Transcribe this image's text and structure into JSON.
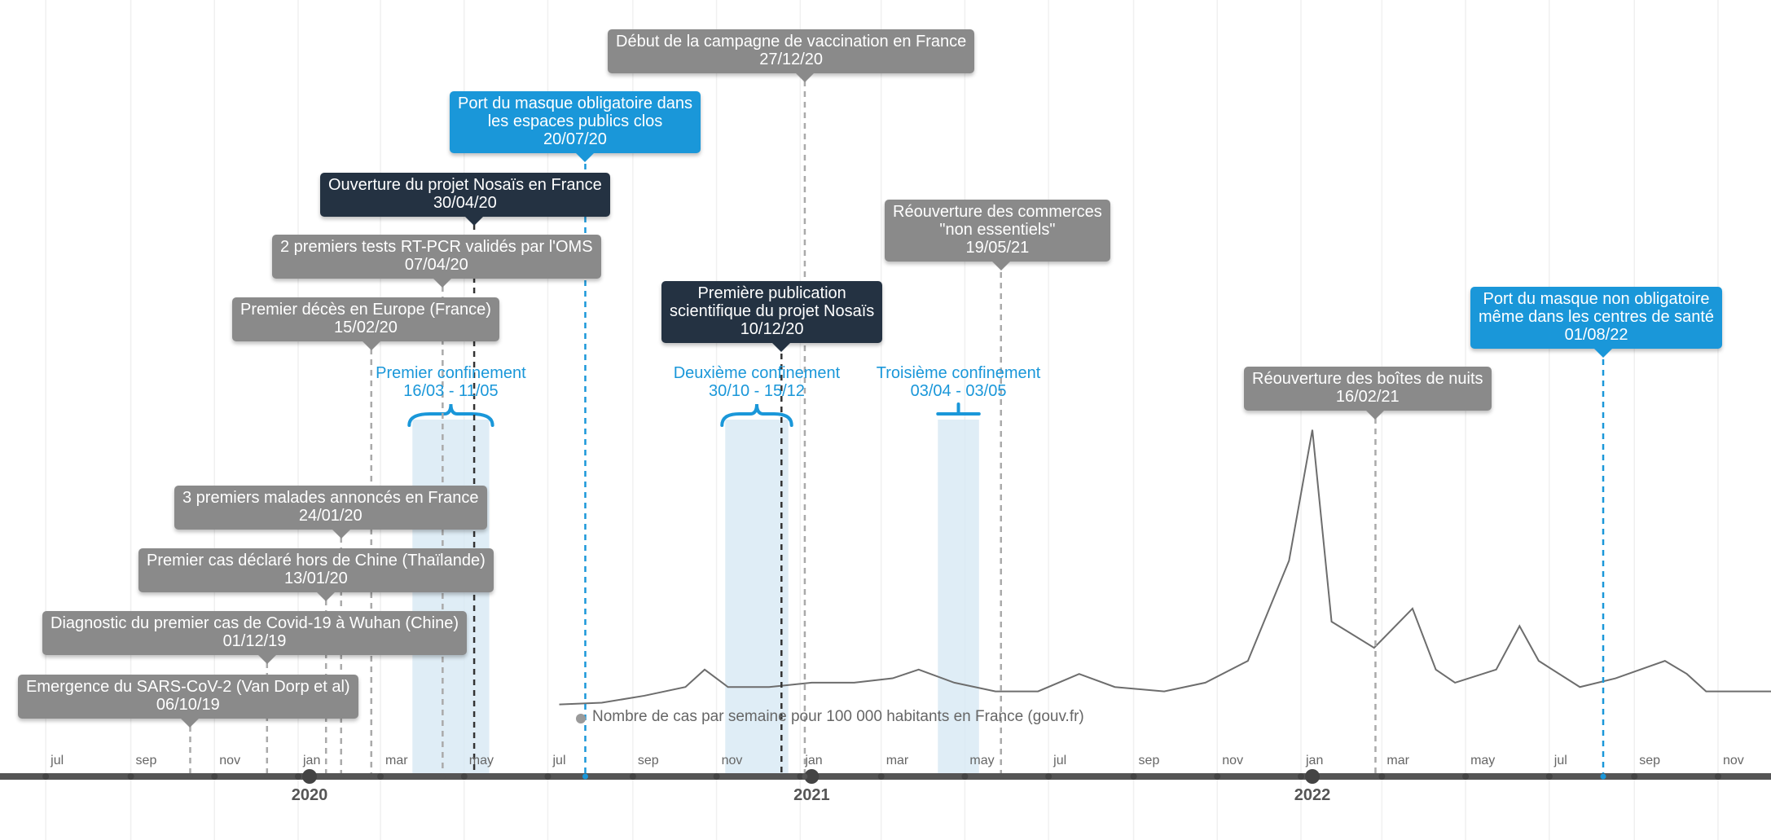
{
  "colors": {
    "gray_box": "#8a8a8a",
    "dark_box": "#243242",
    "blue_box": "#1a97d9",
    "shade": "#d7e8f4",
    "axis": "#555555"
  },
  "axis": {
    "months": [
      "jul",
      "sep",
      "nov",
      "jan",
      "mar",
      "may",
      "jul",
      "sep",
      "nov",
      "jan",
      "mar",
      "may",
      "jul",
      "sep",
      "nov",
      "jan",
      "mar",
      "may",
      "jul",
      "sep",
      "nov"
    ],
    "years": [
      "2020",
      "2021",
      "2022"
    ]
  },
  "events": [
    {
      "title": "Emergence du SARS-CoV-2 (Van Dorp et al)",
      "date": "06/10/19",
      "style": "gray"
    },
    {
      "title": "Diagnostic du premier cas de Covid-19 à Wuhan (Chine)",
      "date": "01/12/19",
      "style": "gray"
    },
    {
      "title": "Premier cas déclaré hors de Chine (Thaïlande)",
      "date": "13/01/20",
      "style": "gray"
    },
    {
      "title": "3 premiers malades annoncés en France",
      "date": "24/01/20",
      "style": "gray"
    },
    {
      "title": "Premier décès en Europe (France)",
      "date": "15/02/20",
      "style": "gray"
    },
    {
      "title": "2 premiers tests RT-PCR validés par l'OMS",
      "date": "07/04/20",
      "style": "gray"
    },
    {
      "title": "Ouverture du projet Nosaïs en France",
      "date": "30/04/20",
      "style": "dark"
    },
    {
      "title": "Port du masque obligatoire dans\nles espaces publics clos",
      "date": "20/07/20",
      "style": "blue"
    },
    {
      "title": "Début de la campagne de vaccination en France",
      "date": "27/12/20",
      "style": "gray"
    },
    {
      "title": "Première publication\nscientifique du projet Nosaïs",
      "date": "10/12/20",
      "style": "dark"
    },
    {
      "title": "Réouverture des commerces\n\"non essentiels\"",
      "date": "19/05/21",
      "style": "gray"
    },
    {
      "title": "Réouverture des boîtes de nuits",
      "date": "16/02/21",
      "style": "gray"
    },
    {
      "title": "Port du  masque  non obligatoire\nmême dans les centres de santé",
      "date": "01/08/22",
      "style": "blue"
    }
  ],
  "periods": [
    {
      "label": "Premier confinement",
      "range": "16/03 - 11/05"
    },
    {
      "label": "Deuxième confinement",
      "range": "30/10 - 15/12"
    },
    {
      "label": "Troisième confinement",
      "range": "03/04 - 03/05"
    }
  ],
  "chart_data": {
    "type": "line",
    "series": [
      {
        "name": "Nombre de cas par semaine pour 100 000 habitants en France (gouv.fr)",
        "x": [
          "2020-07-01",
          "2020-08-01",
          "2020-09-01",
          "2020-10-01",
          "2020-10-15",
          "2020-11-01",
          "2020-12-01",
          "2021-01-01",
          "2021-02-01",
          "2021-03-01",
          "2021-03-20",
          "2021-04-15",
          "2021-05-15",
          "2021-06-15",
          "2021-07-15",
          "2021-08-10",
          "2021-09-15",
          "2021-10-15",
          "2021-11-15",
          "2021-12-15",
          "2022-01-01",
          "2022-01-15",
          "2022-02-15",
          "2022-03-15",
          "2022-04-01",
          "2022-04-15",
          "2022-05-15",
          "2022-06-01",
          "2022-06-15",
          "2022-07-15",
          "2022-08-10",
          "2022-09-15",
          "2022-10-01",
          "2022-10-15",
          "2022-11-15",
          "2022-12-15"
        ],
        "values": [
          5,
          7,
          15,
          25,
          45,
          25,
          25,
          30,
          30,
          35,
          45,
          30,
          20,
          20,
          40,
          25,
          20,
          30,
          55,
          170,
          320,
          100,
          70,
          115,
          45,
          30,
          45,
          95,
          55,
          25,
          35,
          55,
          40,
          20,
          20,
          20
        ]
      }
    ],
    "legend_position": "bottom-left"
  }
}
